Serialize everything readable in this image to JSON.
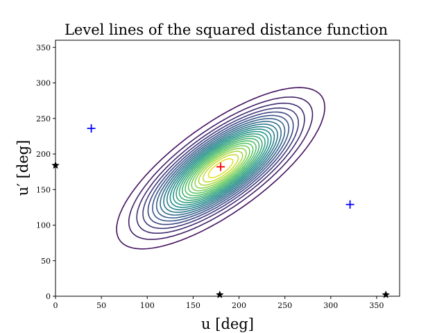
{
  "chart_data": {
    "type": "contour",
    "title": "Level lines of the squared distance function",
    "xlabel": "u [deg]",
    "ylabel": "u′ [deg]",
    "xlim": [
      0,
      375
    ],
    "ylim": [
      0,
      360
    ],
    "x_ticks": [
      0,
      50,
      100,
      150,
      200,
      250,
      300,
      350
    ],
    "y_ticks": [
      0,
      50,
      100,
      150,
      200,
      250,
      300,
      350
    ],
    "grid": false,
    "colormap": [
      "#440154",
      "#3b528b",
      "#21918c",
      "#5ec962",
      "#fde725"
    ],
    "function": {
      "center": [
        180,
        180
      ],
      "diagonal_variance": 3600,
      "antidiagonal_variance": 500,
      "levels": 22
    },
    "markers": [
      {
        "name": "maximum",
        "symbol": "+",
        "color": "#ff0000",
        "x": 180,
        "y": 182
      },
      {
        "name": "saddle",
        "symbol": "+",
        "color": "#0000ff",
        "x": 39,
        "y": 236
      },
      {
        "name": "saddle",
        "symbol": "+",
        "color": "#0000ff",
        "x": 321,
        "y": 129
      },
      {
        "name": "minimum",
        "symbol": "★",
        "color": "#000000",
        "x": 0,
        "y": 184
      },
      {
        "name": "minimum",
        "symbol": "★",
        "color": "#000000",
        "x": 179,
        "y": 2
      },
      {
        "name": "minimum",
        "symbol": "★",
        "color": "#000000",
        "x": 360,
        "y": 2
      }
    ]
  }
}
